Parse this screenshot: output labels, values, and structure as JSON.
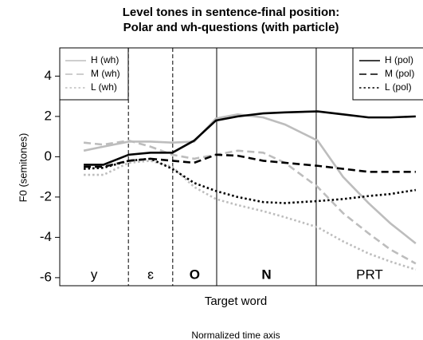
{
  "chart_data": {
    "type": "line",
    "title": "Level tones in sentence-final position:",
    "subtitle": "Polar and wh-questions (with particle)",
    "ylabel": "F0 (semitones)",
    "xlabel": "Target word",
    "caption": "Normalized time axis",
    "xlim": [
      0,
      100
    ],
    "ylim": [
      -6.4,
      5.4
    ],
    "yticks": [
      -6,
      -4,
      -2,
      0,
      2,
      4
    ],
    "boundaries": [
      {
        "value": 18.9,
        "style": "dashed"
      },
      {
        "value": 31.1,
        "style": "dashed"
      },
      {
        "value": 43.2,
        "style": "solid"
      },
      {
        "value": 70.6,
        "style": "solid"
      }
    ],
    "segments": [
      "y",
      "ɛ",
      "O",
      "N",
      "PRT"
    ],
    "x": [
      6.6,
      12,
      19,
      25,
      31,
      37,
      43,
      49,
      56,
      62,
      71,
      78,
      85,
      91,
      98
    ],
    "series": [
      {
        "name": "H (wh)",
        "color": "#bdbdbd",
        "dash": "solid",
        "values": [
          0.3,
          0.5,
          0.75,
          0.75,
          0.7,
          0.75,
          1.9,
          2.1,
          1.95,
          1.6,
          0.8,
          -1.0,
          -2.3,
          -3.3,
          -4.3
        ]
      },
      {
        "name": "M (wh)",
        "color": "#bdbdbd",
        "dash": "dashed",
        "values": [
          0.7,
          0.6,
          0.8,
          0.5,
          0.1,
          -0.1,
          0.1,
          0.3,
          0.2,
          -0.3,
          -1.5,
          -2.8,
          -3.8,
          -4.6,
          -5.3
        ]
      },
      {
        "name": "L (wh)",
        "color": "#bdbdbd",
        "dash": "dotted",
        "values": [
          -0.9,
          -0.9,
          -0.3,
          -0.2,
          -0.5,
          -1.5,
          -2.1,
          -2.4,
          -2.7,
          -3.0,
          -3.5,
          -4.2,
          -4.8,
          -5.2,
          -5.6
        ]
      },
      {
        "name": "H (pol)",
        "color": "#000000",
        "dash": "solid",
        "values": [
          -0.4,
          -0.4,
          0.1,
          0.2,
          0.2,
          0.8,
          1.8,
          2.0,
          2.15,
          2.2,
          2.25,
          2.1,
          1.95,
          1.95,
          2.0
        ]
      },
      {
        "name": "M (pol)",
        "color": "#000000",
        "dash": "dashed",
        "values": [
          -0.5,
          -0.5,
          -0.2,
          -0.1,
          -0.2,
          -0.3,
          0.1,
          0.05,
          -0.2,
          -0.3,
          -0.45,
          -0.6,
          -0.75,
          -0.75,
          -0.75
        ]
      },
      {
        "name": "L (pol)",
        "color": "#000000",
        "dash": "dotted",
        "values": [
          -0.6,
          -0.55,
          -0.2,
          -0.1,
          -0.6,
          -1.3,
          -1.7,
          -2.0,
          -2.25,
          -2.3,
          -2.2,
          -2.1,
          -1.95,
          -1.85,
          -1.65
        ]
      }
    ]
  }
}
